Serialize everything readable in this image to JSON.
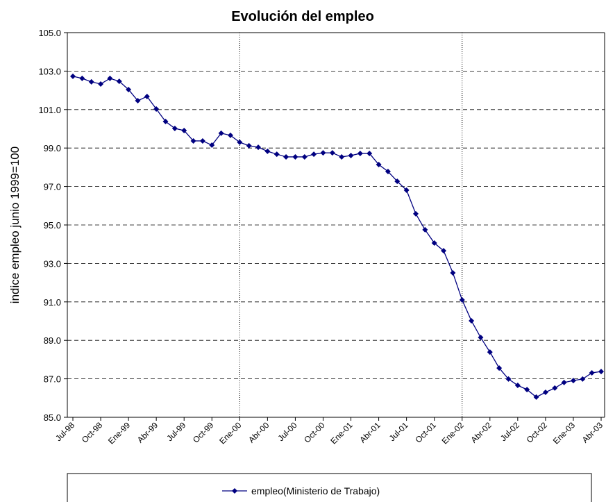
{
  "chart_data": {
    "type": "line",
    "title": "Evolución del empleo",
    "y_label": "indice empleo junio 1999=100",
    "categories": [
      "Jul-98",
      null,
      null,
      "Oct-98",
      null,
      null,
      "Ene-99",
      null,
      null,
      "Abr-99",
      null,
      null,
      "Jul-99",
      null,
      null,
      "Oct-99",
      null,
      null,
      "Ene-00",
      null,
      null,
      "Abr-00",
      null,
      null,
      "Jul-00",
      null,
      null,
      "Oct-00",
      null,
      null,
      "Ene-01",
      null,
      null,
      "Abr-01",
      null,
      null,
      "Jul-01",
      null,
      null,
      "Oct-01",
      null,
      null,
      "Ene-02",
      null,
      null,
      "Abr-02",
      null,
      null,
      "Jul-02",
      null,
      null,
      "Oct-02",
      null,
      null,
      "Ene-03",
      null,
      null,
      "Abr-03"
    ],
    "series": [
      {
        "name": "empleo(Ministerio de Trabajo)",
        "color": "#000080",
        "values": [
          102.73,
          102.62,
          102.44,
          102.33,
          102.62,
          102.47,
          102.04,
          101.46,
          101.68,
          101.03,
          100.38,
          100.02,
          99.91,
          99.37,
          99.37,
          99.15,
          99.77,
          99.66,
          99.3,
          99.12,
          99.04,
          98.83,
          98.68,
          98.54,
          98.54,
          98.54,
          98.68,
          98.75,
          98.75,
          98.54,
          98.61,
          98.72,
          98.72,
          98.14,
          97.78,
          97.27,
          96.81,
          95.58,
          94.75,
          94.06,
          93.66,
          92.51,
          91.1,
          90.02,
          89.15,
          88.39,
          87.56,
          86.99,
          86.66,
          86.44,
          86.05,
          86.3,
          86.52,
          86.81,
          86.91,
          86.99,
          87.31,
          87.38
        ]
      }
    ],
    "ylim": [
      85,
      105
    ],
    "yticks": [
      {
        "value": 85,
        "label": "85.0"
      },
      {
        "value": 87,
        "label": "87.0"
      },
      {
        "value": 89,
        "label": "89.0"
      },
      {
        "value": 91,
        "label": "91.0"
      },
      {
        "value": 93,
        "label": "93.0"
      },
      {
        "value": 95,
        "label": "95.0"
      },
      {
        "value": 97,
        "label": "97.0"
      },
      {
        "value": 99,
        "label": "99.0"
      },
      {
        "value": 101,
        "label": "101.0"
      },
      {
        "value": 103,
        "label": "103.0"
      },
      {
        "value": 105,
        "label": "105.0"
      }
    ],
    "grid": true,
    "year_lines": [
      "Ene-00",
      "Ene-02"
    ],
    "legend": "bottom"
  }
}
